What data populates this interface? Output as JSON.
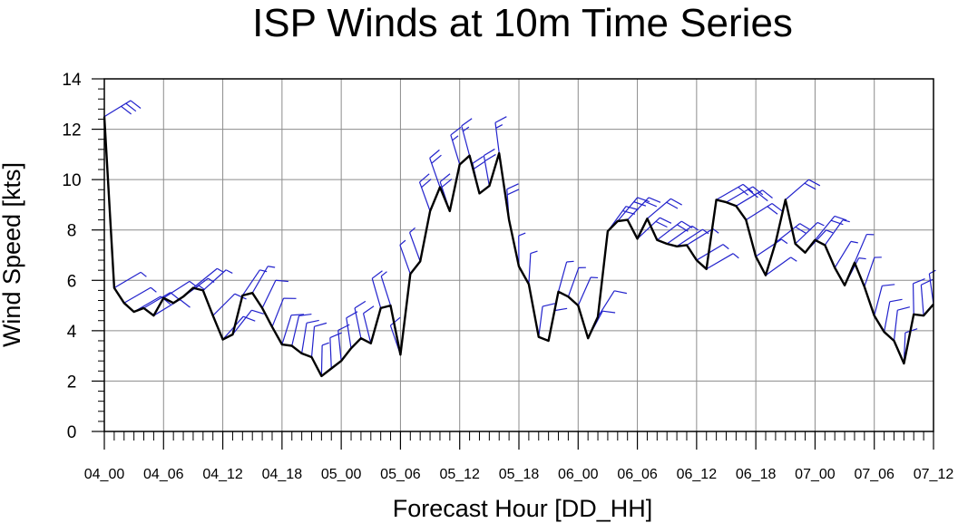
{
  "chart_data": {
    "type": "line",
    "title": "ISP Winds at 10m Time Series",
    "xlabel": "Forecast Hour [DD_HH]",
    "ylabel": "Wind Speed [kts]",
    "xlim": [
      0,
      84
    ],
    "ylim": [
      0,
      14
    ],
    "grid": true,
    "x_ticks": [
      0,
      6,
      12,
      18,
      24,
      30,
      36,
      42,
      48,
      54,
      60,
      66,
      72,
      78,
      84
    ],
    "x_tick_labels": [
      "04_00",
      "04_06",
      "04_12",
      "04_18",
      "05_00",
      "05_06",
      "05_12",
      "05_18",
      "06_00",
      "06_06",
      "06_12",
      "06_18",
      "07_00",
      "07_06",
      "07_12"
    ],
    "y_ticks": [
      0,
      2,
      4,
      6,
      8,
      10,
      12,
      14
    ],
    "y_tick_labels": [
      "0",
      "2",
      "4",
      "6",
      "8",
      "10",
      "12",
      "14"
    ],
    "series": [
      {
        "color": "#000000",
        "x": [
          0,
          1,
          2,
          3,
          4,
          5,
          6,
          7,
          8,
          9,
          10,
          11,
          12,
          13,
          14,
          15,
          16,
          17,
          18,
          19,
          20,
          21,
          22,
          23,
          24,
          25,
          26,
          27,
          28,
          29,
          30,
          31,
          32,
          33,
          34,
          35,
          36,
          37,
          38,
          39,
          40,
          41,
          42,
          43,
          44,
          45,
          46,
          47,
          48,
          49,
          50,
          51,
          52,
          53,
          54,
          55,
          56,
          57,
          58,
          59,
          60,
          61,
          62,
          63,
          64,
          65,
          66,
          67,
          68,
          69,
          70,
          71,
          72,
          73,
          74,
          75,
          76,
          77,
          78,
          79,
          80,
          81,
          82,
          83,
          84
        ],
        "values": [
          12.5,
          5.7,
          5.1,
          4.75,
          4.9,
          4.6,
          5.3,
          5.1,
          5.35,
          5.7,
          5.6,
          4.6,
          3.65,
          3.85,
          5.4,
          5.5,
          4.9,
          4.15,
          3.45,
          3.4,
          3.1,
          2.95,
          2.2,
          2.5,
          2.8,
          3.3,
          3.7,
          3.5,
          4.9,
          5.0,
          3.05,
          6.25,
          6.75,
          8.75,
          9.7,
          8.75,
          10.6,
          10.95,
          9.45,
          9.75,
          11.05,
          8.4,
          6.55,
          5.85,
          3.75,
          3.6,
          5.55,
          5.35,
          5.0,
          3.7,
          4.55,
          7.95,
          8.35,
          8.4,
          7.65,
          8.45,
          7.6,
          7.45,
          7.35,
          7.4,
          6.8,
          6.45,
          9.2,
          9.1,
          8.95,
          8.4,
          6.95,
          6.2,
          7.5,
          9.2,
          7.45,
          7.1,
          7.6,
          7.4,
          6.5,
          5.8,
          6.7,
          5.75,
          4.6,
          3.95,
          3.6,
          2.7,
          4.65,
          4.6,
          5.05
        ]
      }
    ],
    "wind_barbs": {
      "color": "#2222cc",
      "note": "",
      "flags": [
        "wind-barbs"
      ]
    }
  }
}
